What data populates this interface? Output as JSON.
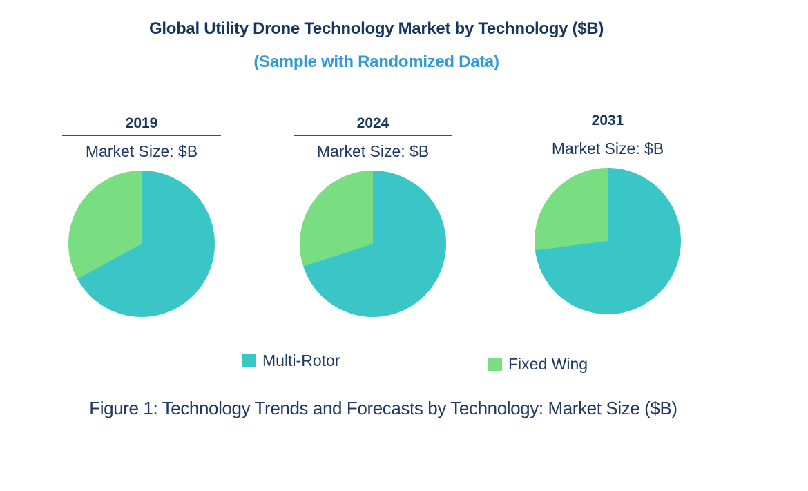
{
  "header": {
    "title": "Global Utility Drone Technology Market by Technology ($B)",
    "subtitle": "(Sample with Randomized Data)"
  },
  "colors": {
    "multi_rotor": "#3AC6C7",
    "fixed_wing": "#79DD82",
    "title_navy": "#17365D",
    "subtitle_blue": "#2E9BD6",
    "text_navy": "#1F3864",
    "rule_gray": "#4A4A4A"
  },
  "chart_data": {
    "type": "pie",
    "series_labels": [
      "Multi-Rotor",
      "Fixed Wing"
    ],
    "value_format": "percent share, estimated from slice angles (no numeric labels shown in figure)",
    "legend_position": "bottom",
    "pies": [
      {
        "year": "2019",
        "axis_label": "Market Size: $B",
        "values": [
          67,
          33
        ]
      },
      {
        "year": "2024",
        "axis_label": "Market Size: $B",
        "values": [
          70,
          30
        ]
      },
      {
        "year": "2031",
        "axis_label": "Market Size: $B",
        "values": [
          73,
          27
        ]
      }
    ]
  },
  "legend": {
    "items": [
      {
        "label": "Multi-Rotor",
        "color_key": "multi_rotor"
      },
      {
        "label": "Fixed Wing",
        "color_key": "fixed_wing"
      }
    ]
  },
  "caption": "Figure 1: Technology Trends and Forecasts by Technology: Market Size ($B)"
}
